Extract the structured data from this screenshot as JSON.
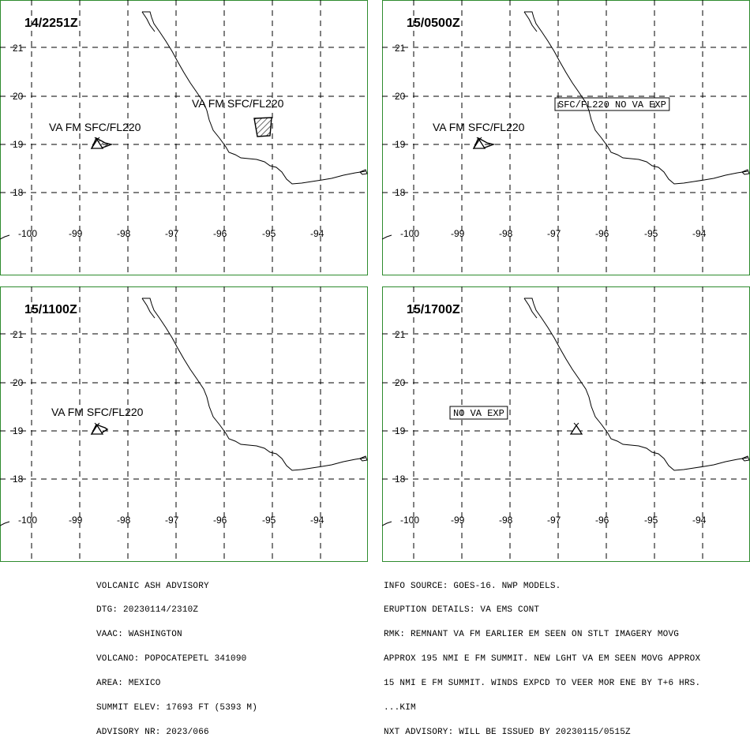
{
  "colors": {
    "frame": "#2e8b2e",
    "ink": "#000000",
    "grid": "#000000"
  },
  "map": {
    "lat_labels": [
      "21",
      "20",
      "19",
      "18"
    ],
    "lon_labels": [
      "-100",
      "-99",
      "-98",
      "-97",
      "-96",
      "-95",
      "-94"
    ]
  },
  "panels": [
    {
      "time": "14/2251Z",
      "labels": [
        {
          "text": "VA FM SFC/FL220",
          "boxed": false
        },
        {
          "text": "VA FM SFC/FL220",
          "boxed": false
        }
      ],
      "polygons": 2,
      "volcano_icon": "volcano-triangle-icon"
    },
    {
      "time": "15/0500Z",
      "labels": [
        {
          "text": "SFC/FL220 NO VA EXP",
          "boxed": true
        },
        {
          "text": "VA FM SFC/FL220",
          "boxed": false
        }
      ],
      "polygons": 1,
      "volcano_icon": "volcano-triangle-icon"
    },
    {
      "time": "15/1100Z",
      "labels": [
        {
          "text": "VA FM SFC/FL220",
          "boxed": false
        }
      ],
      "polygons": 1,
      "volcano_icon": "volcano-triangle-icon"
    },
    {
      "time": "15/1700Z",
      "labels": [
        {
          "text": "NO VA EXP",
          "boxed": true
        }
      ],
      "polygons": 0,
      "volcano_icon": "volcano-triangle-icon"
    }
  ],
  "advisory_left": [
    "VOLCANIC ASH ADVISORY",
    "DTG: 20230114/2310Z",
    "VAAC: WASHINGTON",
    "VOLCANO: POPOCATEPETL 341090",
    "AREA: MEXICO",
    "SUMMIT ELEV: 17693 FT (5393 M)",
    "ADVISORY NR: 2023/066"
  ],
  "advisory_right": [
    "INFO SOURCE: GOES-16. NWP MODELS.",
    "ERUPTION DETAILS: VA EMS CONT",
    "RMK: REMNANT VA FM EARLIER EM SEEN ON STLT IMAGERY MOVG",
    "APPROX 195 NMI E FM SUMMIT. NEW LGHT VA EM SEEN MOVG APPROX",
    "15 NMI E FM SUMMIT. WINDS EXPCD TO VEER MOR ENE BY T+6 HRS.",
    "...KIM",
    "NXT ADVISORY: WILL BE ISSUED BY 20230115/0515Z"
  ]
}
